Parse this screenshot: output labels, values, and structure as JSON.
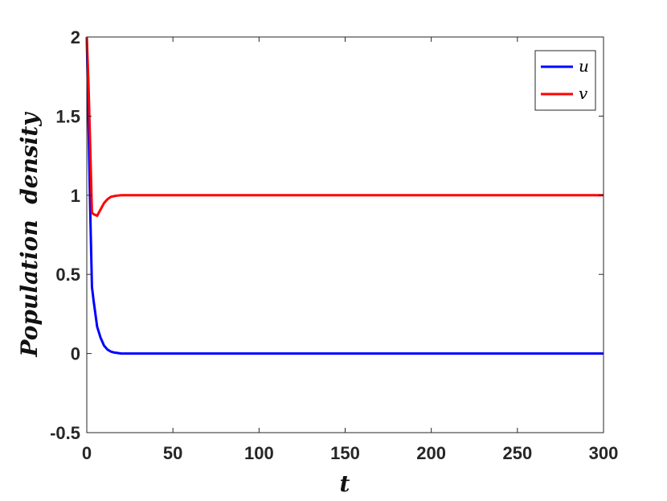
{
  "chart_data": {
    "type": "line",
    "xlabel": "t",
    "ylabel": "Population  density",
    "xlim": [
      0,
      300
    ],
    "ylim": [
      -0.5,
      2
    ],
    "xticks": [
      0,
      50,
      100,
      150,
      200,
      250,
      300
    ],
    "yticks": [
      -0.5,
      0,
      0.5,
      1,
      1.5,
      2
    ],
    "ytick_labels": [
      "-0.5",
      "0",
      "0.5",
      "1",
      "1.5",
      "2"
    ],
    "grid": false,
    "legend_position": "top-right",
    "series": [
      {
        "name": "u",
        "color": "#0000ff",
        "x": [
          0,
          1,
          2,
          3,
          4,
          6,
          8,
          10,
          12,
          14,
          16,
          18,
          20,
          25,
          30,
          50,
          100,
          150,
          200,
          250,
          300
        ],
        "y": [
          2.0,
          1.45,
          0.9,
          0.42,
          0.33,
          0.17,
          0.1,
          0.05,
          0.025,
          0.012,
          0.006,
          0.003,
          0.0,
          0.0,
          0.0,
          0.0,
          0.0,
          0.0,
          0.0,
          0.0,
          0.0
        ]
      },
      {
        "name": "v",
        "color": "#ff0000",
        "x": [
          0,
          1,
          2,
          3,
          4,
          6,
          8,
          10,
          12,
          14,
          16,
          18,
          20,
          25,
          30,
          50,
          100,
          150,
          200,
          250,
          300
        ],
        "y": [
          2.0,
          1.7,
          1.3,
          0.89,
          0.88,
          0.87,
          0.91,
          0.95,
          0.975,
          0.99,
          0.995,
          0.998,
          1.0,
          1.0,
          1.0,
          1.0,
          1.0,
          1.0,
          1.0,
          1.0,
          1.0
        ]
      }
    ]
  }
}
